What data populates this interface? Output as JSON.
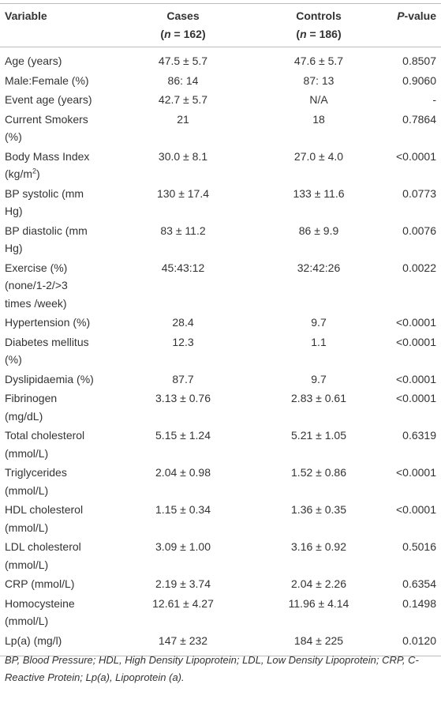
{
  "table": {
    "columns": [
      [
        [
          {
            "text": "Variable"
          }
        ]
      ],
      [
        [
          {
            "text": "Cases"
          }
        ],
        [
          {
            "text": "("
          },
          {
            "text": "n",
            "italic": true
          },
          {
            "text": " = 162)"
          }
        ]
      ],
      [
        [
          {
            "text": "Controls"
          }
        ],
        [
          {
            "text": "("
          },
          {
            "text": "n",
            "italic": true
          },
          {
            "text": " = 186)"
          }
        ]
      ],
      [
        [
          {
            "text": "P",
            "italic": true
          },
          {
            "text": "-value"
          }
        ]
      ]
    ],
    "rows": [
      [
        "Age (years)",
        "47.5 ± 5.7",
        "47.6 ± 5.7",
        "0.8507"
      ],
      [
        "Male:Female (%)",
        "86: 14",
        "87: 13",
        "0.9060"
      ],
      [
        "Event age (years)",
        "42.7 ± 5.7",
        "N/A",
        "-"
      ],
      [
        "Current Smokers (%)",
        "21",
        "18",
        "0.7864"
      ],
      [
        [
          {
            "text": "Body Mass Index (kg/m"
          },
          {
            "text": "2",
            "sup": true
          },
          {
            "text": ")"
          }
        ],
        "30.0 ± 8.1",
        "27.0 ± 4.0",
        "<0.0001"
      ],
      [
        "BP systolic (mm Hg)",
        "130 ± 17.4",
        "133 ± 11.6",
        "0.0773"
      ],
      [
        "BP diastolic (mm Hg)",
        "83 ± 11.2",
        "86 ± 9.9",
        "0.0076"
      ],
      [
        "Exercise (%) (none/1-2/>3 times /week)",
        "45:43:12",
        "32:42:26",
        "0.0022"
      ],
      [
        "Hypertension (%)",
        "28.4",
        "9.7",
        "<0.0001"
      ],
      [
        "Diabetes mellitus (%)",
        "12.3",
        "1.1",
        "<0.0001"
      ],
      [
        "Dyslipidaemia (%)",
        "87.7",
        "9.7",
        "<0.0001"
      ],
      [
        "Fibrinogen (mg/dL)",
        "3.13 ± 0.76",
        "2.83 ± 0.61",
        "<0.0001"
      ],
      [
        "Total cholesterol (mmol/L)",
        "5.15 ± 1.24",
        "5.21 ± 1.05",
        "0.6319"
      ],
      [
        "Triglycerides (mmol/L)",
        "2.04 ± 0.98",
        "1.52 ± 0.86",
        "<0.0001"
      ],
      [
        "HDL cholesterol (mmol/L)",
        "1.15 ± 0.34",
        "1.36 ± 0.35",
        "<0.0001"
      ],
      [
        "LDL cholesterol (mmol/L)",
        "3.09 ± 1.00",
        "3.16 ± 0.92",
        "0.5016"
      ],
      [
        "CRP (mmol/L)",
        "2.19 ± 3.74",
        "2.04 ± 2.26",
        "0.6354"
      ],
      [
        "Homocysteine (mmol/L)",
        "12.61 ± 4.27",
        "11.96 ± 4.14",
        "0.1498"
      ],
      [
        "Lp(a) (mg/l)",
        "147 ± 232",
        "184 ± 225",
        "0.0120"
      ]
    ]
  },
  "footnote": "BP, Blood Pressure; HDL, High Density Lipoprotein; LDL, Low Density Lipoprotein; CRP, C-Reactive Protein; Lp(a), Lipoprotein (a)."
}
